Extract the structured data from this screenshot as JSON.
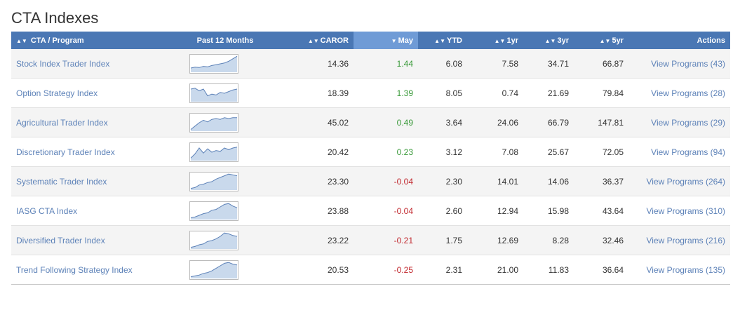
{
  "page": {
    "title": "CTA Indexes"
  },
  "table": {
    "headers": {
      "program": "CTA / Program",
      "past12": "Past 12 Months",
      "caror": "CAROR",
      "may": "May",
      "ytd": "YTD",
      "y1": "1yr",
      "y3": "3yr",
      "y5": "5yr",
      "actions": "Actions"
    },
    "sort_icon": "sort-up-down-icon",
    "sorted_icon": "sort-down-icon",
    "rows": [
      {
        "name": "Stock Index Trader Index",
        "caror": "14.36",
        "may": "1.44",
        "ytd": "6.08",
        "y1": "7.58",
        "y3": "34.71",
        "y5": "66.87",
        "action": "View Programs (43)",
        "trend": [
          0.25,
          0.3,
          0.28,
          0.35,
          0.32,
          0.4,
          0.45,
          0.5,
          0.55,
          0.65,
          0.8,
          0.95
        ]
      },
      {
        "name": "Option Strategy Index",
        "caror": "18.39",
        "may": "1.39",
        "ytd": "8.05",
        "y1": "0.74",
        "y3": "21.69",
        "y5": "79.84",
        "action": "View Programs (28)",
        "trend": [
          0.75,
          0.8,
          0.65,
          0.75,
          0.35,
          0.45,
          0.4,
          0.55,
          0.5,
          0.6,
          0.7,
          0.75
        ]
      },
      {
        "name": "Agricultural Trader Index",
        "caror": "45.02",
        "may": "0.49",
        "ytd": "3.64",
        "y1": "24.06",
        "y3": "66.79",
        "y5": "147.81",
        "action": "View Programs (29)",
        "trend": [
          0.1,
          0.3,
          0.5,
          0.65,
          0.55,
          0.7,
          0.75,
          0.7,
          0.8,
          0.75,
          0.8,
          0.8
        ]
      },
      {
        "name": "Discretionary Trader Index",
        "caror": "20.42",
        "may": "0.23",
        "ytd": "3.12",
        "y1": "7.08",
        "y3": "25.67",
        "y5": "72.05",
        "action": "View Programs (94)",
        "trend": [
          0.15,
          0.4,
          0.75,
          0.45,
          0.7,
          0.5,
          0.6,
          0.55,
          0.75,
          0.65,
          0.75,
          0.8
        ]
      },
      {
        "name": "Systematic Trader Index",
        "caror": "23.30",
        "may": "-0.04",
        "ytd": "2.30",
        "y1": "14.01",
        "y3": "14.06",
        "y5": "36.37",
        "action": "View Programs (264)",
        "trend": [
          0.1,
          0.15,
          0.3,
          0.35,
          0.45,
          0.5,
          0.65,
          0.75,
          0.85,
          0.95,
          0.9,
          0.85
        ]
      },
      {
        "name": "IASG CTA Index",
        "caror": "23.88",
        "may": "-0.04",
        "ytd": "2.60",
        "y1": "12.94",
        "y3": "15.98",
        "y5": "43.64",
        "action": "View Programs (310)",
        "trend": [
          0.1,
          0.15,
          0.25,
          0.35,
          0.4,
          0.55,
          0.6,
          0.75,
          0.9,
          0.95,
          0.8,
          0.7
        ]
      },
      {
        "name": "Diversified Trader Index",
        "caror": "23.22",
        "may": "-0.21",
        "ytd": "1.75",
        "y1": "12.69",
        "y3": "8.28",
        "y5": "32.46",
        "action": "View Programs (216)",
        "trend": [
          0.1,
          0.15,
          0.25,
          0.3,
          0.45,
          0.5,
          0.6,
          0.75,
          0.95,
          0.9,
          0.8,
          0.75
        ]
      },
      {
        "name": "Trend Following Strategy Index",
        "caror": "20.53",
        "may": "-0.25",
        "ytd": "2.31",
        "y1": "21.00",
        "y3": "11.83",
        "y5": "36.64",
        "action": "View Programs (135)",
        "trend": [
          0.1,
          0.15,
          0.2,
          0.3,
          0.35,
          0.45,
          0.6,
          0.75,
          0.9,
          0.95,
          0.85,
          0.8
        ]
      }
    ]
  },
  "colors": {
    "header_bg": "#4a77b4",
    "header_sorted_bg": "#6f9bd6",
    "link": "#5d82b8",
    "positive": "#3a9a3a",
    "negative": "#c1272d",
    "spark_fill": "#c9d9ec",
    "spark_line": "#5d82b8"
  }
}
